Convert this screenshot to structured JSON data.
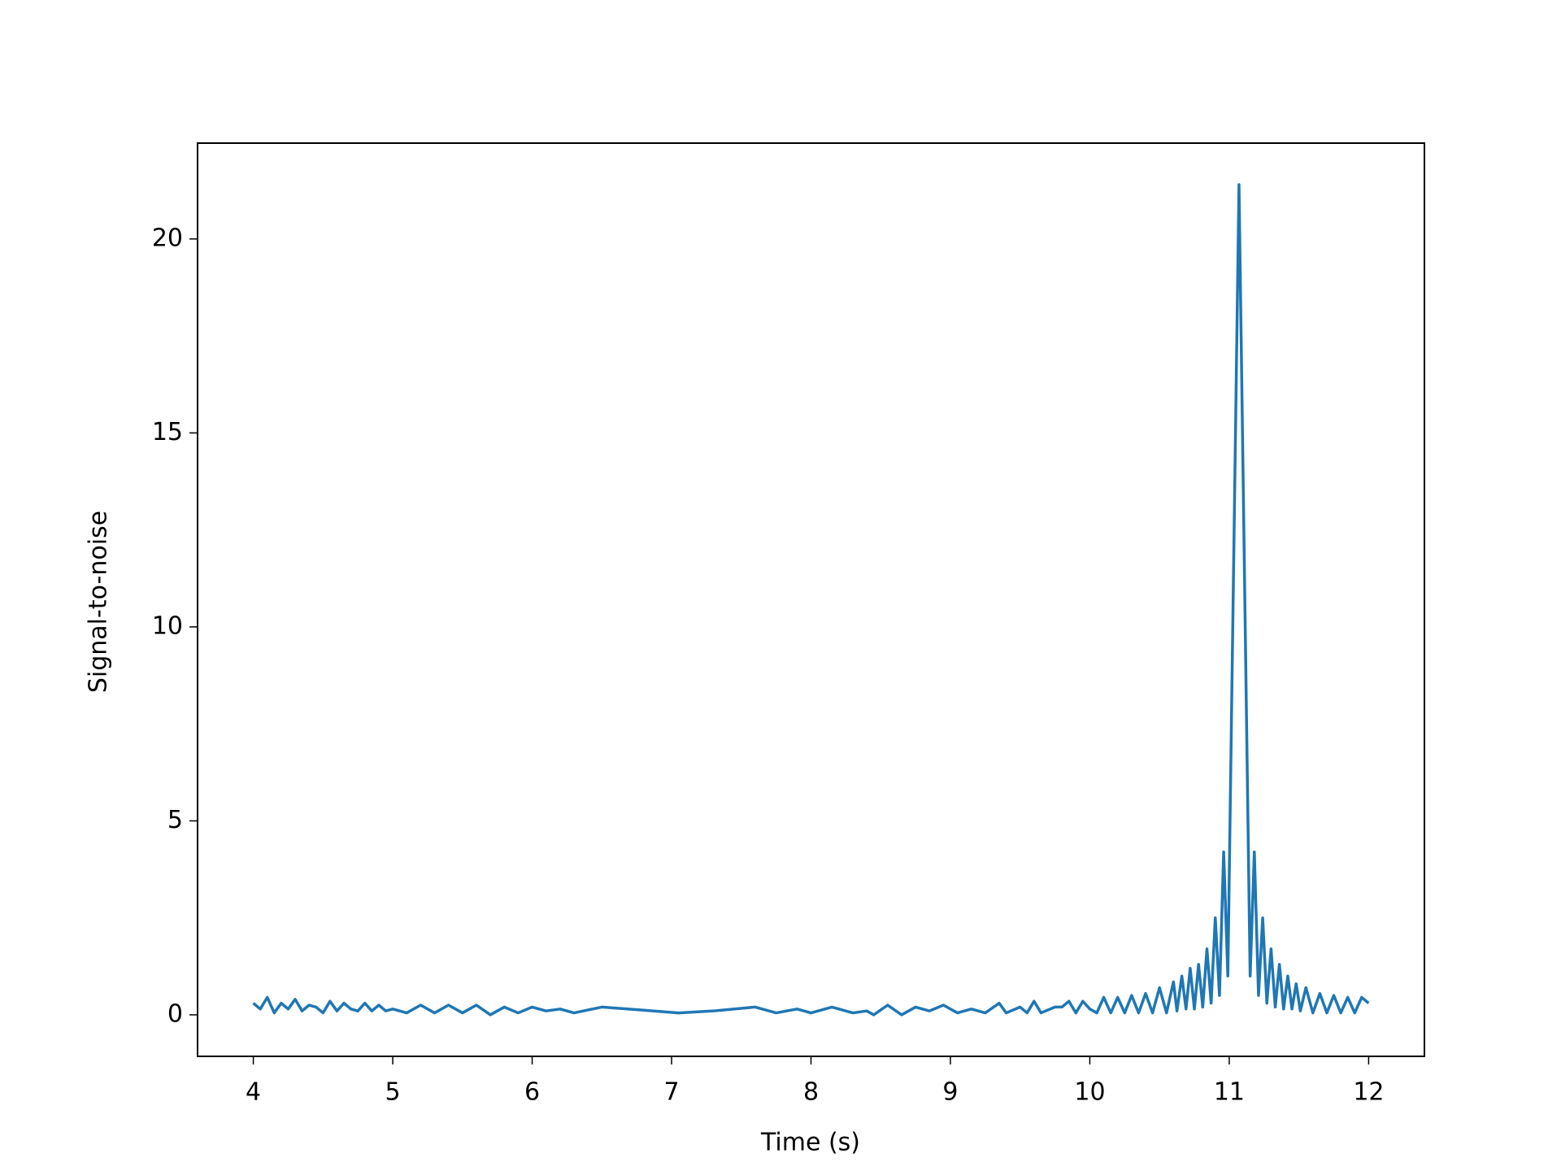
{
  "chart_data": {
    "type": "line",
    "xlabel": "Time (s)",
    "ylabel": "Signal-to-noise",
    "xlim": [
      3.6,
      12.4
    ],
    "ylim": [
      -1.07,
      22.47
    ],
    "xticks": [
      4,
      5,
      6,
      7,
      8,
      9,
      10,
      11,
      12
    ],
    "yticks": [
      0,
      5,
      10,
      15,
      20
    ],
    "series": [
      {
        "color": "#1f77b4",
        "x": [
          4.0,
          4.05,
          4.1,
          4.15,
          4.2,
          4.25,
          4.3,
          4.35,
          4.4,
          4.45,
          4.5,
          4.55,
          4.6,
          4.65,
          4.7,
          4.75,
          4.8,
          4.85,
          4.9,
          4.95,
          5.0,
          5.1,
          5.2,
          5.3,
          5.4,
          5.5,
          5.6,
          5.7,
          5.8,
          5.9,
          6.0,
          6.1,
          6.2,
          6.3,
          6.5,
          6.8,
          7.05,
          7.3,
          7.6,
          7.75,
          7.9,
          8.0,
          8.15,
          8.3,
          8.4,
          8.45,
          8.55,
          8.65,
          8.75,
          8.85,
          8.95,
          9.05,
          9.15,
          9.25,
          9.35,
          9.4,
          9.5,
          9.55,
          9.6,
          9.65,
          9.75,
          9.8,
          9.85,
          9.9,
          9.95,
          10.0,
          10.05,
          10.1,
          10.15,
          10.2,
          10.25,
          10.3,
          10.35,
          10.4,
          10.45,
          10.5,
          10.55,
          10.6,
          10.625,
          10.66,
          10.69,
          10.72,
          10.75,
          10.78,
          10.81,
          10.84,
          10.87,
          10.9,
          10.93,
          10.96,
          10.99,
          11.07,
          11.15,
          11.18,
          11.21,
          11.24,
          11.27,
          11.3,
          11.33,
          11.36,
          11.39,
          11.42,
          11.45,
          11.48,
          11.51,
          11.55,
          11.6,
          11.65,
          11.7,
          11.75,
          11.8,
          11.85,
          11.9,
          11.95,
          12.0
        ],
        "values": [
          0.3,
          0.15,
          0.45,
          0.05,
          0.3,
          0.15,
          0.4,
          0.1,
          0.25,
          0.2,
          0.05,
          0.35,
          0.1,
          0.3,
          0.15,
          0.1,
          0.3,
          0.1,
          0.25,
          0.1,
          0.15,
          0.05,
          0.25,
          0.05,
          0.25,
          0.05,
          0.25,
          0.0,
          0.2,
          0.05,
          0.2,
          0.1,
          0.15,
          0.05,
          0.2,
          0.12,
          0.05,
          0.1,
          0.2,
          0.05,
          0.15,
          0.05,
          0.2,
          0.05,
          0.1,
          0.0,
          0.25,
          0.0,
          0.2,
          0.1,
          0.25,
          0.05,
          0.15,
          0.05,
          0.3,
          0.05,
          0.2,
          0.05,
          0.35,
          0.05,
          0.2,
          0.2,
          0.35,
          0.05,
          0.35,
          0.15,
          0.05,
          0.45,
          0.05,
          0.45,
          0.05,
          0.5,
          0.05,
          0.55,
          0.05,
          0.7,
          0.05,
          0.85,
          0.1,
          1.0,
          0.15,
          1.2,
          0.15,
          1.3,
          0.2,
          1.7,
          0.3,
          2.5,
          0.5,
          4.2,
          1.0,
          21.4,
          1.0,
          4.2,
          0.5,
          2.5,
          0.3,
          1.7,
          0.2,
          1.3,
          0.15,
          1.0,
          0.15,
          0.8,
          0.1,
          0.7,
          0.05,
          0.55,
          0.05,
          0.5,
          0.05,
          0.45,
          0.05,
          0.45,
          0.3
        ]
      }
    ]
  }
}
